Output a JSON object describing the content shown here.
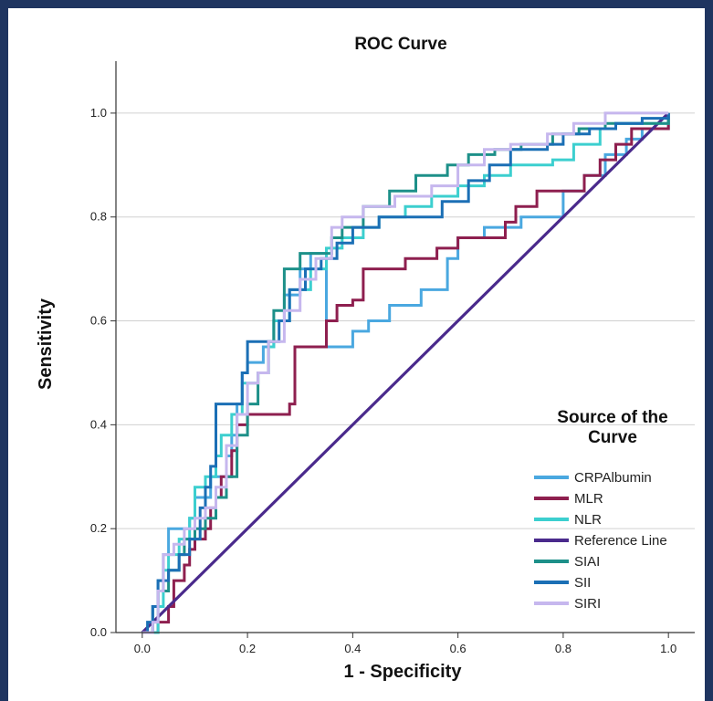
{
  "chart_data": {
    "type": "line",
    "title": "ROC Curve",
    "xlabel": "1 - Specificity",
    "ylabel": "Sensitivity",
    "xlim": [
      -0.05,
      1.05
    ],
    "ylim": [
      0,
      1.1
    ],
    "x_ticks": [
      "0.0",
      "0.2",
      "0.4",
      "0.6",
      "0.8",
      "1.0"
    ],
    "y_ticks": [
      "0.0",
      "0.2",
      "0.4",
      "0.6",
      "0.8",
      "1.0"
    ],
    "grid": "horizontal",
    "legend": {
      "title_line1": "Source of the",
      "title_line2": "Curve",
      "placement": "right"
    },
    "series": [
      {
        "name": "CRPAlbumin",
        "color": "#4aa8e0",
        "points": [
          [
            0,
            0
          ],
          [
            0.02,
            0.02
          ],
          [
            0.03,
            0.1
          ],
          [
            0.04,
            0.15
          ],
          [
            0.05,
            0.2
          ],
          [
            0.07,
            0.2
          ],
          [
            0.09,
            0.22
          ],
          [
            0.1,
            0.26
          ],
          [
            0.12,
            0.26
          ],
          [
            0.13,
            0.3
          ],
          [
            0.15,
            0.3
          ],
          [
            0.16,
            0.34
          ],
          [
            0.17,
            0.38
          ],
          [
            0.18,
            0.44
          ],
          [
            0.19,
            0.5
          ],
          [
            0.2,
            0.52
          ],
          [
            0.22,
            0.52
          ],
          [
            0.23,
            0.55
          ],
          [
            0.25,
            0.6
          ],
          [
            0.27,
            0.65
          ],
          [
            0.3,
            0.7
          ],
          [
            0.32,
            0.73
          ],
          [
            0.35,
            0.55
          ],
          [
            0.4,
            0.58
          ],
          [
            0.43,
            0.6
          ],
          [
            0.47,
            0.63
          ],
          [
            0.5,
            0.63
          ],
          [
            0.53,
            0.66
          ],
          [
            0.58,
            0.72
          ],
          [
            0.6,
            0.76
          ],
          [
            0.65,
            0.78
          ],
          [
            0.68,
            0.78
          ],
          [
            0.72,
            0.8
          ],
          [
            0.75,
            0.8
          ],
          [
            0.8,
            0.85
          ],
          [
            0.84,
            0.88
          ],
          [
            0.88,
            0.92
          ],
          [
            0.9,
            0.92
          ],
          [
            0.92,
            0.95
          ],
          [
            0.95,
            0.97
          ],
          [
            1,
            1
          ]
        ]
      },
      {
        "name": "MLR",
        "color": "#8e1f4f",
        "points": [
          [
            0,
            0
          ],
          [
            0.03,
            0.02
          ],
          [
            0.05,
            0.05
          ],
          [
            0.06,
            0.1
          ],
          [
            0.08,
            0.13
          ],
          [
            0.09,
            0.16
          ],
          [
            0.1,
            0.18
          ],
          [
            0.12,
            0.2
          ],
          [
            0.13,
            0.24
          ],
          [
            0.14,
            0.26
          ],
          [
            0.15,
            0.3
          ],
          [
            0.17,
            0.35
          ],
          [
            0.18,
            0.4
          ],
          [
            0.2,
            0.42
          ],
          [
            0.25,
            0.42
          ],
          [
            0.28,
            0.44
          ],
          [
            0.29,
            0.55
          ],
          [
            0.33,
            0.55
          ],
          [
            0.35,
            0.6
          ],
          [
            0.37,
            0.63
          ],
          [
            0.4,
            0.64
          ],
          [
            0.42,
            0.7
          ],
          [
            0.47,
            0.7
          ],
          [
            0.5,
            0.72
          ],
          [
            0.53,
            0.72
          ],
          [
            0.56,
            0.74
          ],
          [
            0.6,
            0.76
          ],
          [
            0.65,
            0.76
          ],
          [
            0.69,
            0.79
          ],
          [
            0.71,
            0.82
          ],
          [
            0.75,
            0.85
          ],
          [
            0.8,
            0.85
          ],
          [
            0.84,
            0.88
          ],
          [
            0.87,
            0.91
          ],
          [
            0.9,
            0.94
          ],
          [
            0.93,
            0.97
          ],
          [
            1,
            1
          ]
        ]
      },
      {
        "name": "NLR",
        "color": "#3ccfcf",
        "points": [
          [
            0,
            0
          ],
          [
            0.03,
            0.05
          ],
          [
            0.04,
            0.12
          ],
          [
            0.05,
            0.15
          ],
          [
            0.07,
            0.18
          ],
          [
            0.09,
            0.22
          ],
          [
            0.1,
            0.28
          ],
          [
            0.12,
            0.3
          ],
          [
            0.14,
            0.34
          ],
          [
            0.15,
            0.38
          ],
          [
            0.17,
            0.42
          ],
          [
            0.19,
            0.48
          ],
          [
            0.22,
            0.5
          ],
          [
            0.24,
            0.55
          ],
          [
            0.25,
            0.6
          ],
          [
            0.28,
            0.66
          ],
          [
            0.32,
            0.7
          ],
          [
            0.35,
            0.74
          ],
          [
            0.38,
            0.76
          ],
          [
            0.42,
            0.78
          ],
          [
            0.45,
            0.8
          ],
          [
            0.5,
            0.82
          ],
          [
            0.55,
            0.84
          ],
          [
            0.6,
            0.86
          ],
          [
            0.65,
            0.88
          ],
          [
            0.7,
            0.9
          ],
          [
            0.78,
            0.91
          ],
          [
            0.82,
            0.94
          ],
          [
            0.87,
            0.97
          ],
          [
            0.9,
            0.98
          ],
          [
            1,
            1
          ]
        ]
      },
      {
        "name": "Reference Line",
        "color": "#4a2a8c",
        "points": [
          [
            0,
            0
          ],
          [
            1,
            1
          ]
        ]
      },
      {
        "name": "SIAI",
        "color": "#1d9089",
        "points": [
          [
            0,
            0
          ],
          [
            0.02,
            0.05
          ],
          [
            0.03,
            0.08
          ],
          [
            0.05,
            0.12
          ],
          [
            0.07,
            0.15
          ],
          [
            0.08,
            0.18
          ],
          [
            0.1,
            0.2
          ],
          [
            0.12,
            0.22
          ],
          [
            0.14,
            0.26
          ],
          [
            0.16,
            0.3
          ],
          [
            0.18,
            0.38
          ],
          [
            0.2,
            0.44
          ],
          [
            0.22,
            0.5
          ],
          [
            0.24,
            0.56
          ],
          [
            0.25,
            0.62
          ],
          [
            0.27,
            0.7
          ],
          [
            0.3,
            0.73
          ],
          [
            0.34,
            0.73
          ],
          [
            0.36,
            0.76
          ],
          [
            0.38,
            0.78
          ],
          [
            0.42,
            0.82
          ],
          [
            0.47,
            0.85
          ],
          [
            0.52,
            0.88
          ],
          [
            0.58,
            0.9
          ],
          [
            0.62,
            0.92
          ],
          [
            0.67,
            0.93
          ],
          [
            0.72,
            0.94
          ],
          [
            0.78,
            0.96
          ],
          [
            0.83,
            0.97
          ],
          [
            0.88,
            0.98
          ],
          [
            1,
            1
          ]
        ]
      },
      {
        "name": "SII",
        "color": "#1b6fb5",
        "points": [
          [
            0,
            0
          ],
          [
            0.01,
            0.02
          ],
          [
            0.02,
            0.05
          ],
          [
            0.03,
            0.1
          ],
          [
            0.05,
            0.12
          ],
          [
            0.07,
            0.15
          ],
          [
            0.09,
            0.18
          ],
          [
            0.11,
            0.24
          ],
          [
            0.12,
            0.28
          ],
          [
            0.13,
            0.32
          ],
          [
            0.14,
            0.44
          ],
          [
            0.17,
            0.44
          ],
          [
            0.19,
            0.5
          ],
          [
            0.2,
            0.56
          ],
          [
            0.24,
            0.56
          ],
          [
            0.26,
            0.6
          ],
          [
            0.28,
            0.66
          ],
          [
            0.31,
            0.7
          ],
          [
            0.34,
            0.72
          ],
          [
            0.37,
            0.75
          ],
          [
            0.4,
            0.78
          ],
          [
            0.45,
            0.8
          ],
          [
            0.52,
            0.8
          ],
          [
            0.57,
            0.83
          ],
          [
            0.62,
            0.87
          ],
          [
            0.66,
            0.9
          ],
          [
            0.7,
            0.93
          ],
          [
            0.77,
            0.94
          ],
          [
            0.8,
            0.96
          ],
          [
            0.85,
            0.97
          ],
          [
            0.9,
            0.98
          ],
          [
            0.95,
            0.99
          ],
          [
            1,
            1
          ]
        ]
      },
      {
        "name": "SIRI",
        "color": "#c6b7ee",
        "points": [
          [
            0,
            0
          ],
          [
            0.02,
            0.02
          ],
          [
            0.03,
            0.08
          ],
          [
            0.04,
            0.15
          ],
          [
            0.06,
            0.17
          ],
          [
            0.08,
            0.2
          ],
          [
            0.1,
            0.22
          ],
          [
            0.12,
            0.24
          ],
          [
            0.14,
            0.28
          ],
          [
            0.16,
            0.36
          ],
          [
            0.18,
            0.42
          ],
          [
            0.2,
            0.48
          ],
          [
            0.22,
            0.5
          ],
          [
            0.24,
            0.56
          ],
          [
            0.27,
            0.62
          ],
          [
            0.3,
            0.68
          ],
          [
            0.33,
            0.72
          ],
          [
            0.36,
            0.78
          ],
          [
            0.38,
            0.8
          ],
          [
            0.42,
            0.82
          ],
          [
            0.48,
            0.84
          ],
          [
            0.55,
            0.86
          ],
          [
            0.6,
            0.9
          ],
          [
            0.65,
            0.93
          ],
          [
            0.7,
            0.94
          ],
          [
            0.77,
            0.96
          ],
          [
            0.82,
            0.98
          ],
          [
            0.88,
            1
          ],
          [
            1,
            1
          ]
        ]
      }
    ]
  }
}
